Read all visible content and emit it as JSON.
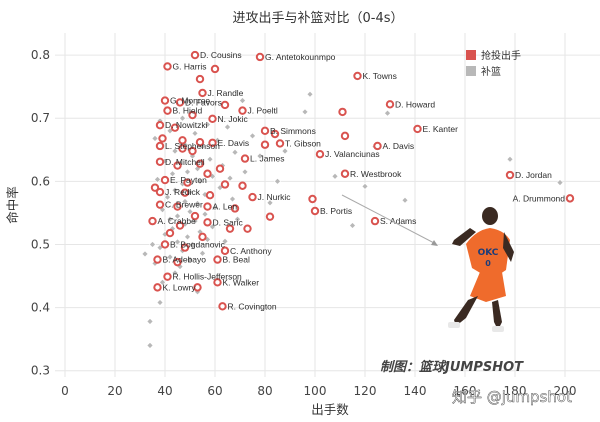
{
  "chart_data": {
    "type": "scatter",
    "title": "进攻出手与补篮对比（0-4s）",
    "xlabel": "出手数",
    "ylabel": "命中率",
    "xlim": [
      -4,
      214
    ],
    "ylim": [
      0.29,
      0.835
    ],
    "x_ticks": [
      0,
      20,
      40,
      60,
      80,
      100,
      120,
      140,
      160,
      180,
      200
    ],
    "y_ticks": [
      0.3,
      0.4,
      0.5,
      0.6,
      0.7,
      0.8
    ],
    "x_tick_labels": [
      "0",
      "20",
      "40",
      "60",
      "80",
      "100",
      "120",
      "140",
      "160",
      "180",
      "200"
    ],
    "y_tick_labels": [
      "0.3",
      "0.4",
      "0.5",
      "0.6",
      "0.7",
      "0.8"
    ],
    "grid": true,
    "legend_position": "top-right",
    "series": [
      {
        "name": "抢投出手",
        "color": "#d9534f",
        "points": [
          {
            "label": "D. Cousins",
            "x": 52,
            "y": 0.8
          },
          {
            "label": "G. Antetokounmpo",
            "x": 78,
            "y": 0.797
          },
          {
            "label": "G. Harris",
            "x": 41,
            "y": 0.782
          },
          {
            "label": "",
            "x": 60,
            "y": 0.778
          },
          {
            "label": "K. Towns",
            "x": 117,
            "y": 0.767
          },
          {
            "label": "",
            "x": 54,
            "y": 0.762
          },
          {
            "label": "J. Randle",
            "x": 55,
            "y": 0.74
          },
          {
            "label": "G. Monroe",
            "x": 40,
            "y": 0.728
          },
          {
            "label": "D. Favors",
            "x": 46,
            "y": 0.725
          },
          {
            "label": "",
            "x": 64,
            "y": 0.721
          },
          {
            "label": "J. Poeltl",
            "x": 71,
            "y": 0.712
          },
          {
            "label": "D. Howard",
            "x": 130,
            "y": 0.722
          },
          {
            "label": "B. Hield",
            "x": 41,
            "y": 0.712
          },
          {
            "label": "",
            "x": 51,
            "y": 0.705
          },
          {
            "label": "",
            "x": 111,
            "y": 0.71
          },
          {
            "label": "N. Jokic",
            "x": 59,
            "y": 0.699
          },
          {
            "label": "D. Nowitzki",
            "x": 38,
            "y": 0.689
          },
          {
            "label": "",
            "x": 44,
            "y": 0.685
          },
          {
            "label": "B. Simmons",
            "x": 80,
            "y": 0.68
          },
          {
            "label": "E. Kanter",
            "x": 141,
            "y": 0.683
          },
          {
            "label": "",
            "x": 84,
            "y": 0.675
          },
          {
            "label": "",
            "x": 112,
            "y": 0.672
          },
          {
            "label": "",
            "x": 39,
            "y": 0.668
          },
          {
            "label": "",
            "x": 47,
            "y": 0.665
          },
          {
            "label": "",
            "x": 54,
            "y": 0.662
          },
          {
            "label": "E. Davis",
            "x": 59,
            "y": 0.661
          },
          {
            "label": "T. Gibson",
            "x": 86,
            "y": 0.66
          },
          {
            "label": "A. Davis",
            "x": 125,
            "y": 0.656
          },
          {
            "label": "",
            "x": 80,
            "y": 0.658
          },
          {
            "label": "L. Stephenson",
            "x": 38,
            "y": 0.656
          },
          {
            "label": "",
            "x": 47,
            "y": 0.652
          },
          {
            "label": "",
            "x": 51,
            "y": 0.648
          },
          {
            "label": "J. Valanciunas",
            "x": 102,
            "y": 0.643
          },
          {
            "label": "L. James",
            "x": 72,
            "y": 0.636
          },
          {
            "label": "D. Mitchell",
            "x": 38,
            "y": 0.631
          },
          {
            "label": "",
            "x": 45,
            "y": 0.625
          },
          {
            "label": "",
            "x": 54,
            "y": 0.628
          },
          {
            "label": "",
            "x": 62,
            "y": 0.62
          },
          {
            "label": "R. Westbrook",
            "x": 112,
            "y": 0.612
          },
          {
            "label": "",
            "x": 57,
            "y": 0.612
          },
          {
            "label": "D. Jordan",
            "x": 178,
            "y": 0.61
          },
          {
            "label": "E. Payton",
            "x": 40,
            "y": 0.602
          },
          {
            "label": "",
            "x": 49,
            "y": 0.598
          },
          {
            "label": "",
            "x": 64,
            "y": 0.595
          },
          {
            "label": "",
            "x": 71,
            "y": 0.593
          },
          {
            "label": "",
            "x": 36,
            "y": 0.59
          },
          {
            "label": "J. Redick",
            "x": 38,
            "y": 0.583
          },
          {
            "label": "",
            "x": 48,
            "y": 0.582
          },
          {
            "label": "",
            "x": 58,
            "y": 0.578
          },
          {
            "label": "J. Nurkic",
            "x": 75,
            "y": 0.575
          },
          {
            "label": "A. Drummond",
            "x": 202,
            "y": 0.573
          },
          {
            "label": "",
            "x": 99,
            "y": 0.572
          },
          {
            "label": "C. Brewer",
            "x": 38,
            "y": 0.563
          },
          {
            "label": "",
            "x": 45,
            "y": 0.56
          },
          {
            "label": "A. Len",
            "x": 57,
            "y": 0.56
          },
          {
            "label": "",
            "x": 68,
            "y": 0.557
          },
          {
            "label": "B. Portis",
            "x": 100,
            "y": 0.553
          },
          {
            "label": "",
            "x": 82,
            "y": 0.544
          },
          {
            "label": "",
            "x": 52,
            "y": 0.545
          },
          {
            "label": "A. Crabbe",
            "x": 35,
            "y": 0.537
          },
          {
            "label": "D. Saric",
            "x": 57,
            "y": 0.535
          },
          {
            "label": "S. Adams",
            "x": 124,
            "y": 0.537
          },
          {
            "label": "",
            "x": 46,
            "y": 0.53
          },
          {
            "label": "",
            "x": 66,
            "y": 0.525
          },
          {
            "label": "",
            "x": 73,
            "y": 0.525
          },
          {
            "label": "",
            "x": 42,
            "y": 0.518
          },
          {
            "label": "",
            "x": 55,
            "y": 0.512
          },
          {
            "label": "B. Bogdanovic",
            "x": 40,
            "y": 0.5
          },
          {
            "label": "C. Anthony",
            "x": 64,
            "y": 0.49
          },
          {
            "label": "",
            "x": 48,
            "y": 0.495
          },
          {
            "label": "B. Adebayo",
            "x": 37,
            "y": 0.476
          },
          {
            "label": "B. Beal",
            "x": 61,
            "y": 0.476
          },
          {
            "label": "",
            "x": 45,
            "y": 0.472
          },
          {
            "label": "R. Hollis-Jefferson",
            "x": 41,
            "y": 0.449
          },
          {
            "label": "K. Walker",
            "x": 61,
            "y": 0.44
          },
          {
            "label": "K. Lowry",
            "x": 37,
            "y": 0.432
          },
          {
            "label": "",
            "x": 53,
            "y": 0.432
          },
          {
            "label": "R. Covington",
            "x": 63,
            "y": 0.402
          }
        ]
      },
      {
        "name": "补篮",
        "color": "#b8b8b8",
        "points": [
          {
            "x": 71,
            "y": 0.728
          },
          {
            "x": 96,
            "y": 0.71
          },
          {
            "x": 47,
            "y": 0.7
          },
          {
            "x": 38,
            "y": 0.696
          },
          {
            "x": 57,
            "y": 0.69
          },
          {
            "x": 65,
            "y": 0.686
          },
          {
            "x": 42,
            "y": 0.68
          },
          {
            "x": 52,
            "y": 0.676
          },
          {
            "x": 75,
            "y": 0.672
          },
          {
            "x": 36,
            "y": 0.668
          },
          {
            "x": 61,
            "y": 0.665
          },
          {
            "x": 48,
            "y": 0.658
          },
          {
            "x": 55,
            "y": 0.655
          },
          {
            "x": 44,
            "y": 0.648
          },
          {
            "x": 68,
            "y": 0.646
          },
          {
            "x": 51,
            "y": 0.64
          },
          {
            "x": 58,
            "y": 0.635
          },
          {
            "x": 40,
            "y": 0.632
          },
          {
            "x": 46,
            "y": 0.628
          },
          {
            "x": 63,
            "y": 0.625
          },
          {
            "x": 53,
            "y": 0.62
          },
          {
            "x": 49,
            "y": 0.615
          },
          {
            "x": 43,
            "y": 0.612
          },
          {
            "x": 59,
            "y": 0.608
          },
          {
            "x": 66,
            "y": 0.605
          },
          {
            "x": 37,
            "y": 0.603
          },
          {
            "x": 54,
            "y": 0.6
          },
          {
            "x": 47,
            "y": 0.596
          },
          {
            "x": 62,
            "y": 0.59
          },
          {
            "x": 44,
            "y": 0.586
          },
          {
            "x": 50,
            "y": 0.583
          },
          {
            "x": 56,
            "y": 0.579
          },
          {
            "x": 41,
            "y": 0.575
          },
          {
            "x": 67,
            "y": 0.572
          },
          {
            "x": 48,
            "y": 0.568
          },
          {
            "x": 53,
            "y": 0.565
          },
          {
            "x": 44,
            "y": 0.562
          },
          {
            "x": 60,
            "y": 0.558
          },
          {
            "x": 39,
            "y": 0.555
          },
          {
            "x": 50,
            "y": 0.552
          },
          {
            "x": 56,
            "y": 0.548
          },
          {
            "x": 45,
            "y": 0.545
          },
          {
            "x": 42,
            "y": 0.54
          },
          {
            "x": 52,
            "y": 0.537
          },
          {
            "x": 48,
            "y": 0.532
          },
          {
            "x": 59,
            "y": 0.528
          },
          {
            "x": 43,
            "y": 0.525
          },
          {
            "x": 54,
            "y": 0.52
          },
          {
            "x": 40,
            "y": 0.516
          },
          {
            "x": 49,
            "y": 0.512
          },
          {
            "x": 57,
            "y": 0.508
          },
          {
            "x": 45,
            "y": 0.504
          },
          {
            "x": 51,
            "y": 0.5
          },
          {
            "x": 38,
            "y": 0.495
          },
          {
            "x": 47,
            "y": 0.49
          },
          {
            "x": 55,
            "y": 0.486
          },
          {
            "x": 42,
            "y": 0.48
          },
          {
            "x": 50,
            "y": 0.476
          },
          {
            "x": 36,
            "y": 0.47
          },
          {
            "x": 46,
            "y": 0.465
          },
          {
            "x": 44,
            "y": 0.455
          },
          {
            "x": 39,
            "y": 0.44
          },
          {
            "x": 53,
            "y": 0.425
          },
          {
            "x": 38,
            "y": 0.408
          },
          {
            "x": 32,
            "y": 0.485
          },
          {
            "x": 64,
            "y": 0.505
          },
          {
            "x": 69,
            "y": 0.54
          },
          {
            "x": 72,
            "y": 0.615
          },
          {
            "x": 78,
            "y": 0.64
          },
          {
            "x": 82,
            "y": 0.566
          },
          {
            "x": 85,
            "y": 0.6
          },
          {
            "x": 88,
            "y": 0.648
          },
          {
            "x": 108,
            "y": 0.608
          },
          {
            "x": 115,
            "y": 0.53
          },
          {
            "x": 120,
            "y": 0.592
          },
          {
            "x": 124,
            "y": 0.655
          },
          {
            "x": 129,
            "y": 0.708
          },
          {
            "x": 178,
            "y": 0.635
          },
          {
            "x": 198,
            "y": 0.598
          },
          {
            "x": 34,
            "y": 0.34
          },
          {
            "x": 34,
            "y": 0.378
          },
          {
            "x": 35,
            "y": 0.5
          },
          {
            "x": 136,
            "y": 0.57
          },
          {
            "x": 98,
            "y": 0.738
          }
        ]
      }
    ]
  },
  "watermark": {
    "prefix": "制图：",
    "brand": "篮球JUMPSHOT",
    "zhihu": "知乎 @jumpshot"
  },
  "colors": {
    "red": "#d9534f",
    "gray": "#b8b8b8",
    "jersey": "#ef6b2c"
  }
}
